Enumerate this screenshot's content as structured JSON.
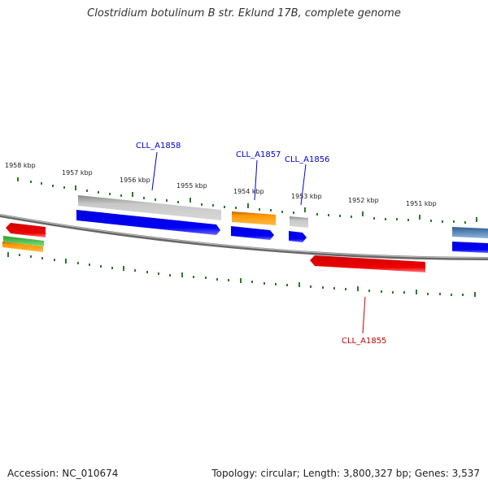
{
  "title": "Clostridium botulinum B str. Eklund 17B, complete genome",
  "footer": {
    "accession": "Accession: NC_010674",
    "summary": "Topology: circular; Length: 3,800,327 bp; Genes: 3,537"
  },
  "ticks": [
    {
      "label": "1958 kbp",
      "color": "#2a7a2a"
    },
    {
      "label": "1957 kbp",
      "color": "#2a7a2a"
    },
    {
      "label": "1956 kbp",
      "color": "#2a7a2a"
    },
    {
      "label": "1955 kbp",
      "color": "#2a7a2a"
    },
    {
      "label": "1954 kbp",
      "color": "#2a7a2a"
    },
    {
      "label": "1953 kbp",
      "color": "#2a7a2a"
    },
    {
      "label": "1952 kbp",
      "color": "#2a7a2a"
    },
    {
      "label": "1951 kbp",
      "color": "#2a7a2a"
    }
  ],
  "genes": [
    {
      "label": "CLL_A1858",
      "color": "#0000cc"
    },
    {
      "label": "CLL_A1857",
      "color": "#0000cc"
    },
    {
      "label": "CLL_A1856",
      "color": "#0000cc"
    },
    {
      "label": "CLL_A1855",
      "color": "#cc0000"
    }
  ],
  "colors": {
    "backbone": "#7a7a7a",
    "cds_forward": "#0000ee",
    "cds_reverse": "#ee0000",
    "gray_feature": "#b4b4b4",
    "orange_feature": "#ff9a00",
    "green_feature": "#3cbf3c",
    "steelblue_feature": "#4a7fb5",
    "tick": "#2a7a2a"
  }
}
